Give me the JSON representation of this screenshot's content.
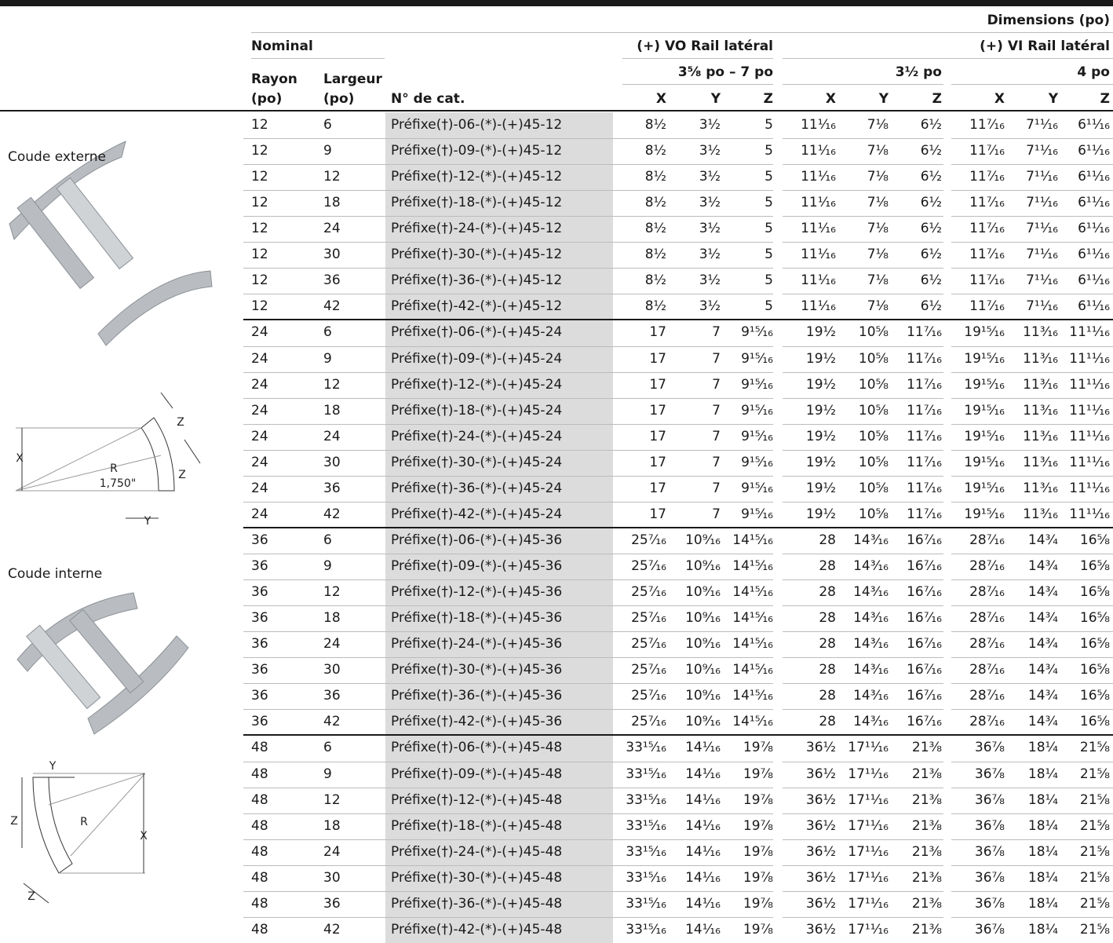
{
  "header": {
    "dimensions": "Dimensions (po)",
    "nominal": "Nominal",
    "vo_rail": "(+) VO Rail latéral",
    "vi_rail": "(+) VI Rail latéral",
    "vo_sub": "3⅝ po – 7 po",
    "vi_sub1": "3½ po",
    "vi_sub2": "4 po",
    "rayon": [
      "Rayon",
      "(po)"
    ],
    "largeur": [
      "Largeur",
      "(po)"
    ],
    "cat": "N° de cat.",
    "xyz": [
      "X",
      "Y",
      "Z"
    ]
  },
  "sections": [
    {
      "label": "Coude externe",
      "diagram": [
        "X",
        "R",
        "1,750\"",
        "Z",
        "Z",
        "Y"
      ]
    },
    {
      "label": "Coude interne",
      "diagram": [
        "Y",
        "Z",
        "R",
        "X",
        "Z"
      ]
    }
  ],
  "table": {
    "rows": [
      [
        "12",
        "6",
        "Préfixe(†)-06-(*)-(+)45-12",
        "8½",
        "3½",
        "5",
        "11¹⁄₁₆",
        "7⅛",
        "6½",
        "11⁷⁄₁₆",
        "7¹¹⁄₁₆",
        "6¹¹⁄₁₆"
      ],
      [
        "12",
        "9",
        "Préfixe(†)-09-(*)-(+)45-12",
        "8½",
        "3½",
        "5",
        "11¹⁄₁₆",
        "7⅛",
        "6½",
        "11⁷⁄₁₆",
        "7¹¹⁄₁₆",
        "6¹¹⁄₁₆"
      ],
      [
        "12",
        "12",
        "Préfixe(†)-12-(*)-(+)45-12",
        "8½",
        "3½",
        "5",
        "11¹⁄₁₆",
        "7⅛",
        "6½",
        "11⁷⁄₁₆",
        "7¹¹⁄₁₆",
        "6¹¹⁄₁₆"
      ],
      [
        "12",
        "18",
        "Préfixe(†)-18-(*)-(+)45-12",
        "8½",
        "3½",
        "5",
        "11¹⁄₁₆",
        "7⅛",
        "6½",
        "11⁷⁄₁₆",
        "7¹¹⁄₁₆",
        "6¹¹⁄₁₆"
      ],
      [
        "12",
        "24",
        "Préfixe(†)-24-(*)-(+)45-12",
        "8½",
        "3½",
        "5",
        "11¹⁄₁₆",
        "7⅛",
        "6½",
        "11⁷⁄₁₆",
        "7¹¹⁄₁₆",
        "6¹¹⁄₁₆"
      ],
      [
        "12",
        "30",
        "Préfixe(†)-30-(*)-(+)45-12",
        "8½",
        "3½",
        "5",
        "11¹⁄₁₆",
        "7⅛",
        "6½",
        "11⁷⁄₁₆",
        "7¹¹⁄₁₆",
        "6¹¹⁄₁₆"
      ],
      [
        "12",
        "36",
        "Préfixe(†)-36-(*)-(+)45-12",
        "8½",
        "3½",
        "5",
        "11¹⁄₁₆",
        "7⅛",
        "6½",
        "11⁷⁄₁₆",
        "7¹¹⁄₁₆",
        "6¹¹⁄₁₆"
      ],
      [
        "12",
        "42",
        "Préfixe(†)-42-(*)-(+)45-12",
        "8½",
        "3½",
        "5",
        "11¹⁄₁₆",
        "7⅛",
        "6½",
        "11⁷⁄₁₆",
        "7¹¹⁄₁₆",
        "6¹¹⁄₁₆"
      ],
      [
        "24",
        "6",
        "Préfixe(†)-06-(*)-(+)45-24",
        "17",
        "7",
        "9¹⁵⁄₁₆",
        "19½",
        "10⅝",
        "11⁷⁄₁₆",
        "19¹⁵⁄₁₆",
        "11³⁄₁₆",
        "11¹¹⁄₁₆"
      ],
      [
        "24",
        "9",
        "Préfixe(†)-09-(*)-(+)45-24",
        "17",
        "7",
        "9¹⁵⁄₁₆",
        "19½",
        "10⅝",
        "11⁷⁄₁₆",
        "19¹⁵⁄₁₆",
        "11³⁄₁₆",
        "11¹¹⁄₁₆"
      ],
      [
        "24",
        "12",
        "Préfixe(†)-12-(*)-(+)45-24",
        "17",
        "7",
        "9¹⁵⁄₁₆",
        "19½",
        "10⅝",
        "11⁷⁄₁₆",
        "19¹⁵⁄₁₆",
        "11³⁄₁₆",
        "11¹¹⁄₁₆"
      ],
      [
        "24",
        "18",
        "Préfixe(†)-18-(*)-(+)45-24",
        "17",
        "7",
        "9¹⁵⁄₁₆",
        "19½",
        "10⅝",
        "11⁷⁄₁₆",
        "19¹⁵⁄₁₆",
        "11³⁄₁₆",
        "11¹¹⁄₁₆"
      ],
      [
        "24",
        "24",
        "Préfixe(†)-24-(*)-(+)45-24",
        "17",
        "7",
        "9¹⁵⁄₁₆",
        "19½",
        "10⅝",
        "11⁷⁄₁₆",
        "19¹⁵⁄₁₆",
        "11³⁄₁₆",
        "11¹¹⁄₁₆"
      ],
      [
        "24",
        "30",
        "Préfixe(†)-30-(*)-(+)45-24",
        "17",
        "7",
        "9¹⁵⁄₁₆",
        "19½",
        "10⅝",
        "11⁷⁄₁₆",
        "19¹⁵⁄₁₆",
        "11³⁄₁₆",
        "11¹¹⁄₁₆"
      ],
      [
        "24",
        "36",
        "Préfixe(†)-36-(*)-(+)45-24",
        "17",
        "7",
        "9¹⁵⁄₁₆",
        "19½",
        "10⅝",
        "11⁷⁄₁₆",
        "19¹⁵⁄₁₆",
        "11³⁄₁₆",
        "11¹¹⁄₁₆"
      ],
      [
        "24",
        "42",
        "Préfixe(†)-42-(*)-(+)45-24",
        "17",
        "7",
        "9¹⁵⁄₁₆",
        "19½",
        "10⅝",
        "11⁷⁄₁₆",
        "19¹⁵⁄₁₆",
        "11³⁄₁₆",
        "11¹¹⁄₁₆"
      ],
      [
        "36",
        "6",
        "Préfixe(†)-06-(*)-(+)45-36",
        "25⁷⁄₁₆",
        "10⁹⁄₁₆",
        "14¹⁵⁄₁₆",
        "28",
        "14³⁄₁₆",
        "16⁷⁄₁₆",
        "28⁷⁄₁₆",
        "14¾",
        "16⅝"
      ],
      [
        "36",
        "9",
        "Préfixe(†)-09-(*)-(+)45-36",
        "25⁷⁄₁₆",
        "10⁹⁄₁₆",
        "14¹⁵⁄₁₆",
        "28",
        "14³⁄₁₆",
        "16⁷⁄₁₆",
        "28⁷⁄₁₆",
        "14¾",
        "16⅝"
      ],
      [
        "36",
        "12",
        "Préfixe(†)-12-(*)-(+)45-36",
        "25⁷⁄₁₆",
        "10⁹⁄₁₆",
        "14¹⁵⁄₁₆",
        "28",
        "14³⁄₁₆",
        "16⁷⁄₁₆",
        "28⁷⁄₁₆",
        "14¾",
        "16⅝"
      ],
      [
        "36",
        "18",
        "Préfixe(†)-18-(*)-(+)45-36",
        "25⁷⁄₁₆",
        "10⁹⁄₁₆",
        "14¹⁵⁄₁₆",
        "28",
        "14³⁄₁₆",
        "16⁷⁄₁₆",
        "28⁷⁄₁₆",
        "14¾",
        "16⅝"
      ],
      [
        "36",
        "24",
        "Préfixe(†)-24-(*)-(+)45-36",
        "25⁷⁄₁₆",
        "10⁹⁄₁₆",
        "14¹⁵⁄₁₆",
        "28",
        "14³⁄₁₆",
        "16⁷⁄₁₆",
        "28⁷⁄₁₆",
        "14¾",
        "16⅝"
      ],
      [
        "36",
        "30",
        "Préfixe(†)-30-(*)-(+)45-36",
        "25⁷⁄₁₆",
        "10⁹⁄₁₆",
        "14¹⁵⁄₁₆",
        "28",
        "14³⁄₁₆",
        "16⁷⁄₁₆",
        "28⁷⁄₁₆",
        "14¾",
        "16⅝"
      ],
      [
        "36",
        "36",
        "Préfixe(†)-36-(*)-(+)45-36",
        "25⁷⁄₁₆",
        "10⁹⁄₁₆",
        "14¹⁵⁄₁₆",
        "28",
        "14³⁄₁₆",
        "16⁷⁄₁₆",
        "28⁷⁄₁₆",
        "14¾",
        "16⅝"
      ],
      [
        "36",
        "42",
        "Préfixe(†)-42-(*)-(+)45-36",
        "25⁷⁄₁₆",
        "10⁹⁄₁₆",
        "14¹⁵⁄₁₆",
        "28",
        "14³⁄₁₆",
        "16⁷⁄₁₆",
        "28⁷⁄₁₆",
        "14¾",
        "16⅝"
      ],
      [
        "48",
        "6",
        "Préfixe(†)-06-(*)-(+)45-48",
        "33¹⁵⁄₁₆",
        "14¹⁄₁₆",
        "19⅞",
        "36½",
        "17¹¹⁄₁₆",
        "21⅜",
        "36⅞",
        "18¼",
        "21⅝"
      ],
      [
        "48",
        "9",
        "Préfixe(†)-09-(*)-(+)45-48",
        "33¹⁵⁄₁₆",
        "14¹⁄₁₆",
        "19⅞",
        "36½",
        "17¹¹⁄₁₆",
        "21⅜",
        "36⅞",
        "18¼",
        "21⅝"
      ],
      [
        "48",
        "12",
        "Préfixe(†)-12-(*)-(+)45-48",
        "33¹⁵⁄₁₆",
        "14¹⁄₁₆",
        "19⅞",
        "36½",
        "17¹¹⁄₁₆",
        "21⅜",
        "36⅞",
        "18¼",
        "21⅝"
      ],
      [
        "48",
        "18",
        "Préfixe(†)-18-(*)-(+)45-48",
        "33¹⁵⁄₁₆",
        "14¹⁄₁₆",
        "19⅞",
        "36½",
        "17¹¹⁄₁₆",
        "21⅜",
        "36⅞",
        "18¼",
        "21⅝"
      ],
      [
        "48",
        "24",
        "Préfixe(†)-24-(*)-(+)45-48",
        "33¹⁵⁄₁₆",
        "14¹⁄₁₆",
        "19⅞",
        "36½",
        "17¹¹⁄₁₆",
        "21⅜",
        "36⅞",
        "18¼",
        "21⅝"
      ],
      [
        "48",
        "30",
        "Préfixe(†)-30-(*)-(+)45-48",
        "33¹⁵⁄₁₆",
        "14¹⁄₁₆",
        "19⅞",
        "36½",
        "17¹¹⁄₁₆",
        "21⅜",
        "36⅞",
        "18¼",
        "21⅝"
      ],
      [
        "48",
        "36",
        "Préfixe(†)-36-(*)-(+)45-48",
        "33¹⁵⁄₁₆",
        "14¹⁄₁₆",
        "19⅞",
        "36½",
        "17¹¹⁄₁₆",
        "21⅜",
        "36⅞",
        "18¼",
        "21⅝"
      ],
      [
        "48",
        "42",
        "Préfixe(†)-42-(*)-(+)45-48",
        "33¹⁵⁄₁₆",
        "14¹⁄₁₆",
        "19⅞",
        "36½",
        "17¹¹⁄₁₆",
        "21⅜",
        "36⅞",
        "18¼",
        "21⅝"
      ]
    ]
  }
}
